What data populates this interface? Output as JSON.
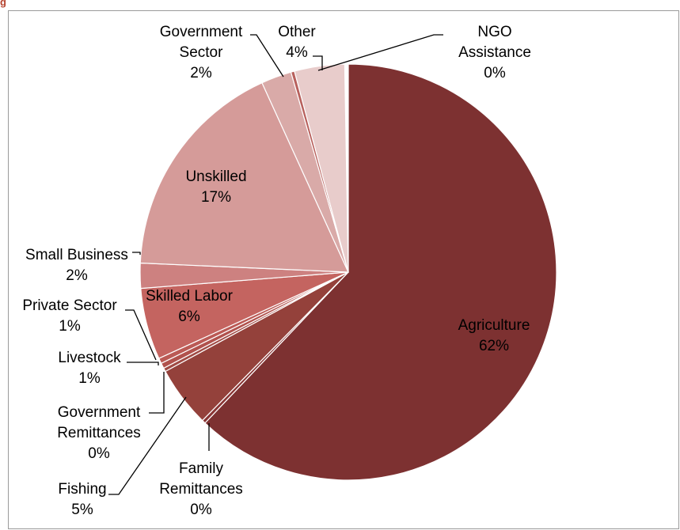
{
  "chart_data": {
    "type": "pie",
    "title_fragment": "g",
    "slices": [
      {
        "name": "Agriculture",
        "value": 62,
        "pct_label": "62%",
        "color": "#7d3131"
      },
      {
        "name": "Family Remittances",
        "value": 0,
        "pct_label": "0%",
        "color": "#8a3534"
      },
      {
        "name": "Fishing",
        "value": 5,
        "pct_label": "5%",
        "color": "#94413b"
      },
      {
        "name": "Government Remittances",
        "value": 0,
        "pct_label": "0%",
        "color": "#a04a44"
      },
      {
        "name": "Livestock",
        "value": 1,
        "pct_label": "1%",
        "color": "#b1524d"
      },
      {
        "name": "Private Sector",
        "value": 1,
        "pct_label": "1%",
        "color": "#bb5a55"
      },
      {
        "name": "Skilled Labor",
        "value": 6,
        "pct_label": "6%",
        "color": "#c46460"
      },
      {
        "name": "Small Business",
        "value": 2,
        "pct_label": "2%",
        "color": "#cd8180"
      },
      {
        "name": "Unskilled",
        "value": 17,
        "pct_label": "17%",
        "color": "#d59b99"
      },
      {
        "name": "Government Sector",
        "value": 2,
        "pct_label": "2%",
        "color": "#d9aaa8"
      },
      {
        "name": "NGO Assistance",
        "value": 0,
        "pct_label": "0%",
        "color": "#b8615d"
      },
      {
        "name": "Other",
        "value": 4,
        "pct_label": "4%",
        "color": "#e8cccb"
      }
    ]
  }
}
